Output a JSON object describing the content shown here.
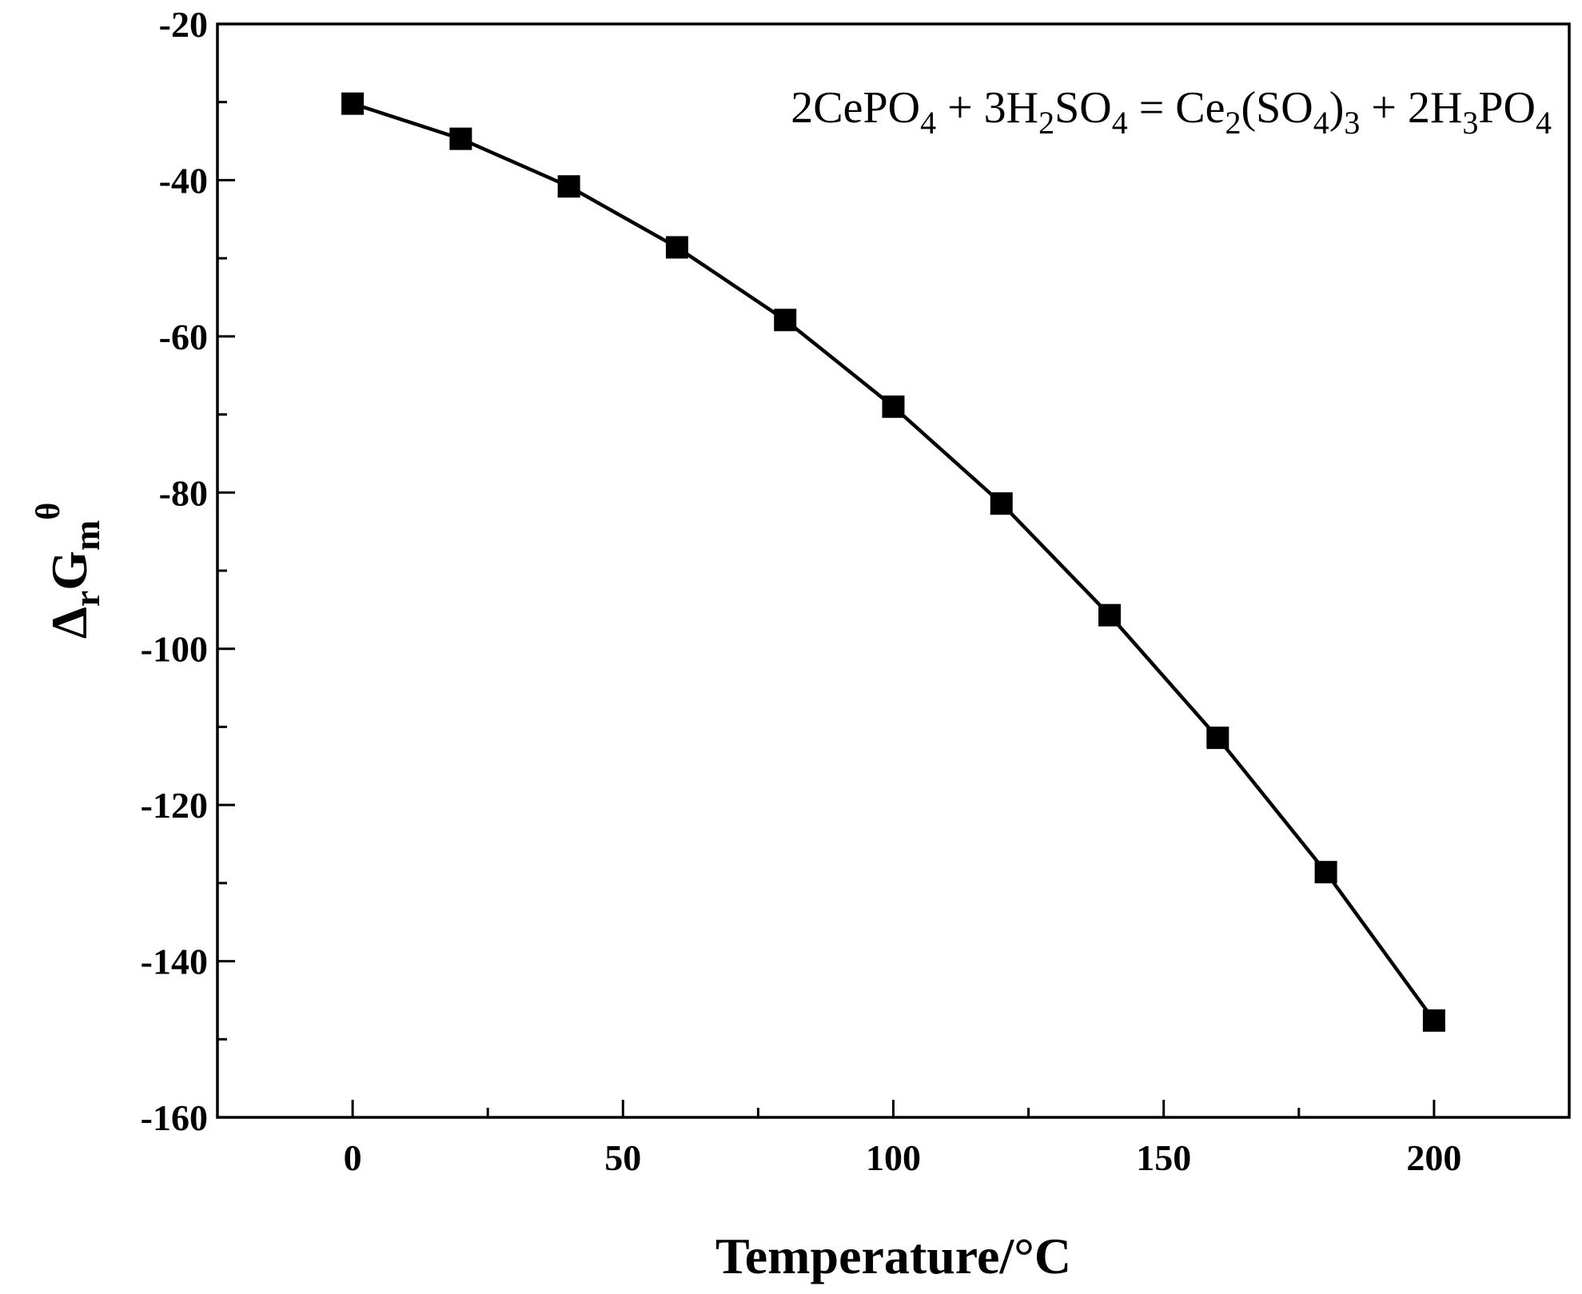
{
  "chart_data": {
    "type": "line",
    "xlabel": "Temperature/°C",
    "ylabel": {
      "main": "Δ",
      "sub1": "r",
      "main2": "G",
      "sub2": "m",
      "sup": "θ"
    },
    "xlim": [
      -25,
      225
    ],
    "ylim": [
      -160,
      -20
    ],
    "xticks": [
      0,
      50,
      100,
      150,
      200
    ],
    "xminor": [
      25,
      75,
      125,
      175
    ],
    "yticks": [
      -20,
      -40,
      -60,
      -80,
      -100,
      -120,
      -140,
      -160
    ],
    "yminor": [
      -30,
      -50,
      -70,
      -90,
      -110,
      -130,
      -150
    ],
    "xtick_labels": [
      "0",
      "50",
      "100",
      "150",
      "200"
    ],
    "ytick_labels": [
      "-20",
      "-40",
      "-60",
      "-80",
      "-100",
      "-120",
      "-140",
      "-160"
    ],
    "series": [
      {
        "marker": "square",
        "color": "#000000",
        "x": [
          0,
          20,
          40,
          60,
          80,
          100,
          120,
          140,
          160,
          180,
          200
        ],
        "y": [
          -30.2,
          -34.7,
          -40.8,
          -48.6,
          -57.9,
          -69.0,
          -81.4,
          -95.7,
          -111.4,
          -128.6,
          -147.6
        ]
      }
    ],
    "annotation": {
      "position": "top-right",
      "parts": [
        {
          "t": "2CePO",
          "k": "n"
        },
        {
          "t": "4",
          "k": "sub"
        },
        {
          "t": " + 3H",
          "k": "n"
        },
        {
          "t": "2",
          "k": "sub"
        },
        {
          "t": "SO",
          "k": "n"
        },
        {
          "t": "4",
          "k": "sub"
        },
        {
          "t": " = Ce",
          "k": "n"
        },
        {
          "t": "2",
          "k": "sub"
        },
        {
          "t": "(SO",
          "k": "n"
        },
        {
          "t": "4",
          "k": "sub"
        },
        {
          "t": ")",
          "k": "n"
        },
        {
          "t": "3",
          "k": "sub"
        },
        {
          "t": " + 2H",
          "k": "n"
        },
        {
          "t": "3",
          "k": "sub"
        },
        {
          "t": "PO",
          "k": "n"
        },
        {
          "t": "4",
          "k": "sub"
        }
      ]
    },
    "grid": false,
    "legend": "none"
  }
}
